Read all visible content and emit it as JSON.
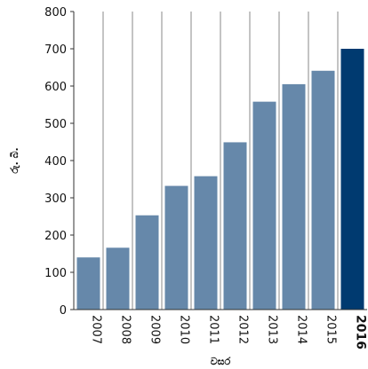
{
  "chart_data": {
    "type": "bar",
    "title": "",
    "xlabel": "වසර",
    "ylabel": "රු. බි.",
    "categories": [
      "2007",
      "2008",
      "2009",
      "2010",
      "2011",
      "2012",
      "2013",
      "2014",
      "2015",
      "2016"
    ],
    "values": [
      140,
      166,
      253,
      332,
      358,
      449,
      558,
      605,
      641,
      700
    ],
    "highlight_category": "2016",
    "ylim": [
      0,
      800
    ],
    "yticks": [
      0,
      100,
      200,
      300,
      400,
      500,
      600,
      700,
      800
    ],
    "grid": "vertical separators between categories",
    "legend": "none",
    "colors": {
      "bar": "#6688aa",
      "highlight": "#003a70",
      "separator": "#888888",
      "axis": "#333333"
    }
  }
}
